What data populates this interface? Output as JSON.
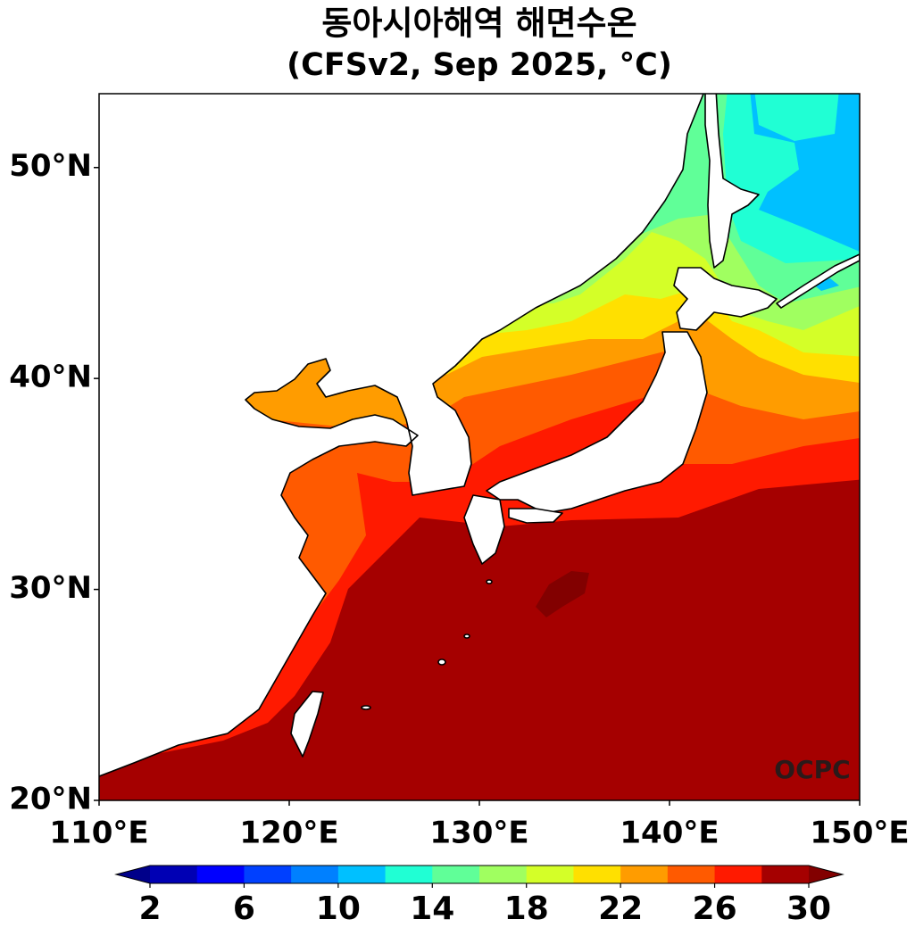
{
  "title": "동아시아해역 해면수온",
  "subtitle": "(CFSv2, Sep 2025, °C)",
  "map": {
    "xlim": [
      110,
      150
    ],
    "ylim": [
      20,
      53.5
    ],
    "xticks": [
      {
        "value": 110,
        "label": "110°E"
      },
      {
        "value": 120,
        "label": "120°E"
      },
      {
        "value": 130,
        "label": "130°E"
      },
      {
        "value": 140,
        "label": "140°E"
      },
      {
        "value": 150,
        "label": "150°E"
      }
    ],
    "yticks": [
      {
        "value": 20,
        "label": "20°N"
      },
      {
        "value": 30,
        "label": "30°N"
      },
      {
        "value": 40,
        "label": "40°N"
      },
      {
        "value": 50,
        "label": "50°N"
      }
    ],
    "watermark": "OCPC"
  },
  "colorbar": {
    "lim": [
      2,
      30
    ],
    "ticks": [
      2,
      6,
      10,
      14,
      18,
      22,
      26,
      30
    ],
    "under_color": "#00008a",
    "colors": [
      "#0000b4",
      "#0000ff",
      "#0040ff",
      "#0080ff",
      "#00c0ff",
      "#20ffd4",
      "#60ff98",
      "#a0ff60",
      "#d4ff28",
      "#ffe000",
      "#ff9c00",
      "#ff5a00",
      "#ff1a00",
      "#a50000"
    ],
    "over_color": "#820000"
  }
}
